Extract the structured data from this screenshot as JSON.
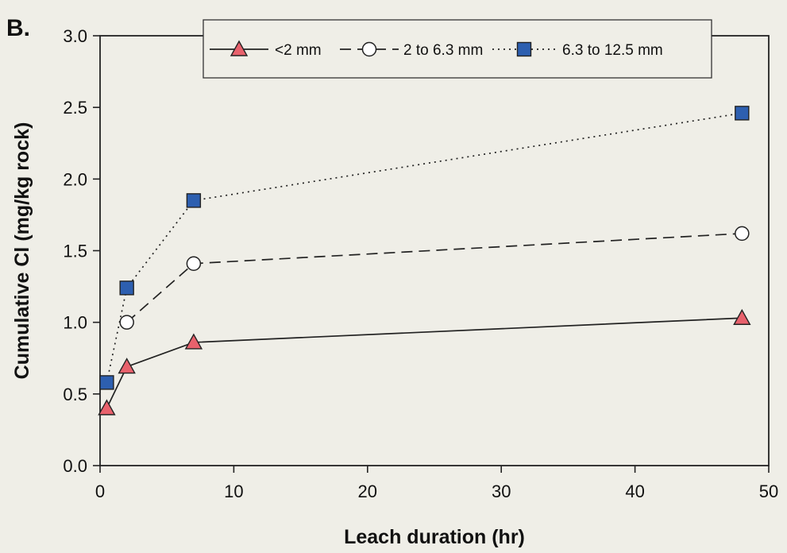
{
  "panel_label": "B.",
  "chart_data": {
    "type": "line",
    "xlabel": "Leach duration (hr)",
    "ylabel": "Cumulative Cl (mg/kg rock)",
    "xlim": [
      0,
      50
    ],
    "ylim": [
      0,
      3.0
    ],
    "xticks": [
      "0",
      "10",
      "20",
      "30",
      "40",
      "50"
    ],
    "yticks": [
      "0.0",
      "0.5",
      "1.0",
      "1.5",
      "2.0",
      "2.5",
      "3.0"
    ],
    "grid": false,
    "legend_position": "top-center",
    "series": [
      {
        "name": "<2 mm",
        "marker": "triangle",
        "line_style": "solid",
        "marker_fill": "#e8616c",
        "x": [
          0.5,
          2,
          7,
          48
        ],
        "y": [
          0.4,
          0.69,
          0.86,
          1.03
        ]
      },
      {
        "name": "2 to 6.3 mm",
        "marker": "circle",
        "line_style": "dashed",
        "marker_fill": "#ffffff",
        "x": [
          2,
          7,
          48
        ],
        "y": [
          1.0,
          1.41,
          1.62
        ]
      },
      {
        "name": "6.3 to 12.5 mm",
        "marker": "square",
        "line_style": "dotted",
        "marker_fill": "#2d5fb0",
        "x": [
          0.5,
          2,
          7,
          48
        ],
        "y": [
          0.58,
          1.24,
          1.85,
          2.46
        ]
      }
    ]
  }
}
